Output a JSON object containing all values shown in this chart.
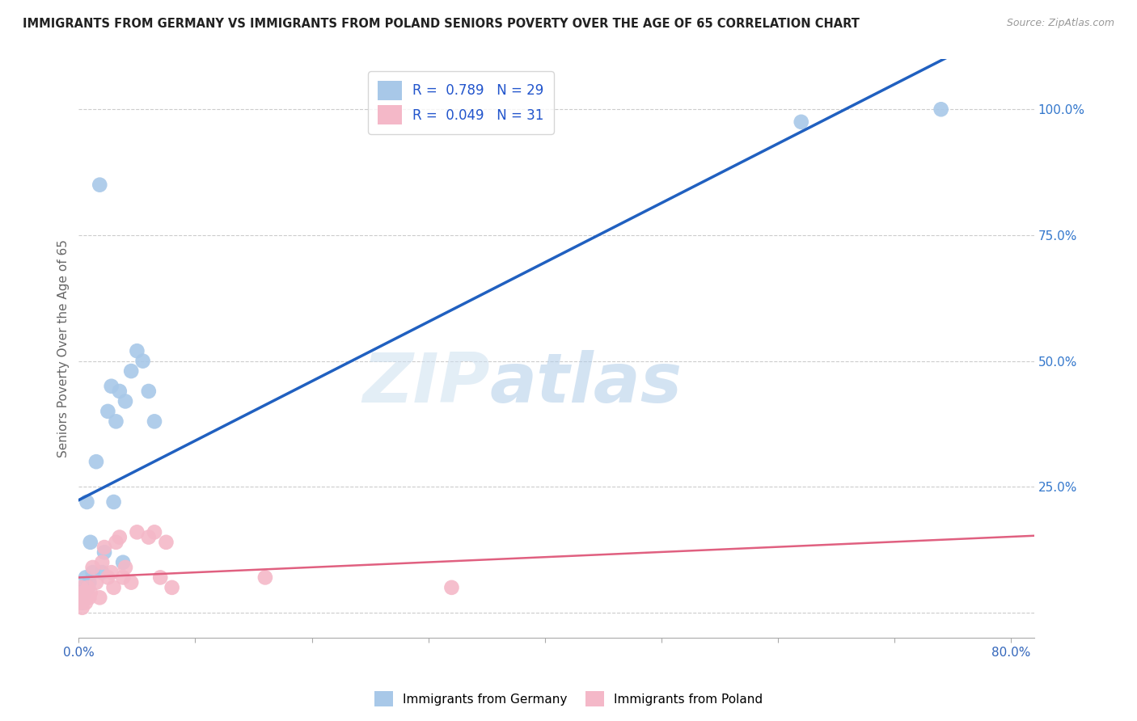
{
  "title": "IMMIGRANTS FROM GERMANY VS IMMIGRANTS FROM POLAND SENIORS POVERTY OVER THE AGE OF 65 CORRELATION CHART",
  "source": "Source: ZipAtlas.com",
  "ylabel": "Seniors Poverty Over the Age of 65",
  "xlim": [
    0.0,
    0.82
  ],
  "ylim": [
    -0.05,
    1.1
  ],
  "yticks_right": [
    0.0,
    0.25,
    0.5,
    0.75,
    1.0
  ],
  "yticklabels_right": [
    "",
    "25.0%",
    "50.0%",
    "75.0%",
    "100.0%"
  ],
  "xtick_positions": [
    0.0,
    0.1,
    0.2,
    0.3,
    0.4,
    0.5,
    0.6,
    0.7,
    0.8
  ],
  "germany_R": 0.789,
  "germany_N": 29,
  "poland_R": 0.049,
  "poland_N": 31,
  "germany_color": "#a8c8e8",
  "poland_color": "#f4b8c8",
  "germany_line_color": "#2060c0",
  "poland_line_color": "#e06080",
  "watermark_zip": "ZIP",
  "watermark_atlas": "atlas",
  "germany_x": [
    0.001,
    0.002,
    0.003,
    0.004,
    0.005,
    0.006,
    0.007,
    0.008,
    0.009,
    0.01,
    0.012,
    0.015,
    0.018,
    0.02,
    0.022,
    0.025,
    0.028,
    0.03,
    0.032,
    0.035,
    0.038,
    0.04,
    0.045,
    0.05,
    0.055,
    0.06,
    0.065,
    0.62,
    0.74
  ],
  "germany_y": [
    0.03,
    0.04,
    0.02,
    0.05,
    0.04,
    0.07,
    0.22,
    0.05,
    0.06,
    0.14,
    0.08,
    0.3,
    0.85,
    0.08,
    0.12,
    0.4,
    0.45,
    0.22,
    0.38,
    0.44,
    0.1,
    0.42,
    0.48,
    0.52,
    0.5,
    0.44,
    0.38,
    0.975,
    1.0
  ],
  "poland_x": [
    0.001,
    0.002,
    0.003,
    0.004,
    0.005,
    0.006,
    0.007,
    0.008,
    0.009,
    0.01,
    0.012,
    0.015,
    0.018,
    0.02,
    0.022,
    0.025,
    0.028,
    0.03,
    0.032,
    0.035,
    0.038,
    0.04,
    0.045,
    0.05,
    0.06,
    0.065,
    0.07,
    0.075,
    0.08,
    0.16,
    0.32
  ],
  "poland_y": [
    0.02,
    0.05,
    0.01,
    0.04,
    0.03,
    0.02,
    0.04,
    0.05,
    0.03,
    0.04,
    0.09,
    0.06,
    0.03,
    0.1,
    0.13,
    0.07,
    0.08,
    0.05,
    0.14,
    0.15,
    0.07,
    0.09,
    0.06,
    0.16,
    0.15,
    0.16,
    0.07,
    0.14,
    0.05,
    0.07,
    0.05
  ],
  "background_color": "#ffffff",
  "grid_color": "#cccccc"
}
